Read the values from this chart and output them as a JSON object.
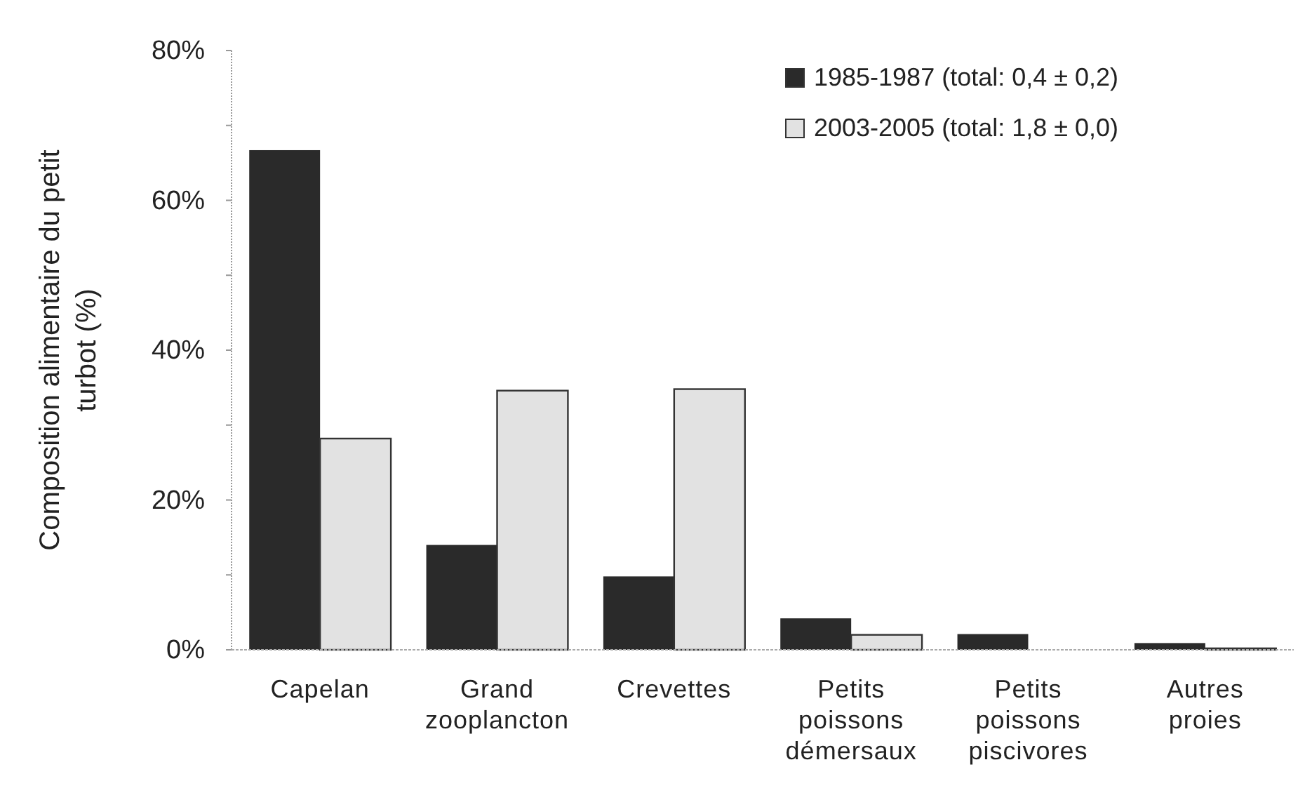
{
  "chart_data": {
    "type": "bar",
    "ylabel": "Composition alimentaire du petit turbot (%)",
    "categories": [
      "Capelan",
      "Grand zooplancton",
      "Crevettes",
      "Petits poissons démersaux",
      "Petits poissons piscivores",
      "Autres proies"
    ],
    "series": [
      {
        "name": "1985-1987 (total: 0,4  ± 0,2)",
        "color": "#2a2a2a",
        "values": [
          66.7,
          14.0,
          9.8,
          4.2,
          2.1,
          0.9
        ]
      },
      {
        "name": "2003-2005 (total: 1,8  ± 0,0)",
        "color": "#e2e2e2",
        "values": [
          28.2,
          34.6,
          34.8,
          2.0,
          0,
          0.2
        ]
      }
    ],
    "ylim": [
      0,
      80
    ],
    "yticks": [
      {
        "value": 0,
        "label": "0%"
      },
      {
        "value": 10,
        "label": null
      },
      {
        "value": 20,
        "label": "20%"
      },
      {
        "value": 30,
        "label": null
      },
      {
        "value": 40,
        "label": "40%"
      },
      {
        "value": 50,
        "label": null
      },
      {
        "value": 60,
        "label": "60%"
      },
      {
        "value": 70,
        "label": null
      },
      {
        "value": 80,
        "label": "80%"
      }
    ],
    "legend": "top right",
    "grid": false
  }
}
